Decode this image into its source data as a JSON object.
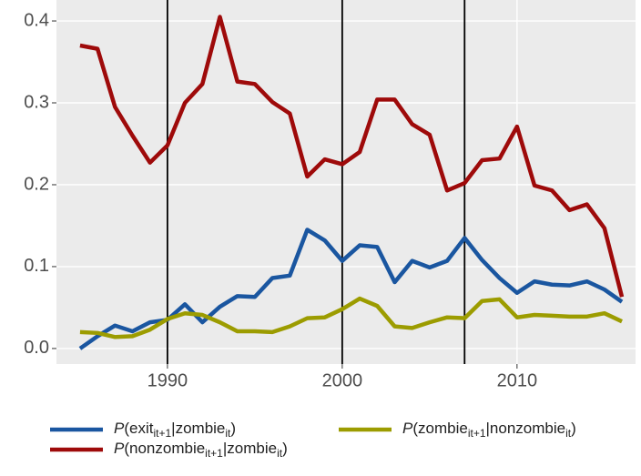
{
  "chart_data": {
    "type": "line",
    "x": [
      1985,
      1986,
      1987,
      1988,
      1989,
      1990,
      1991,
      1992,
      1993,
      1994,
      1995,
      1996,
      1997,
      1998,
      1999,
      2000,
      2001,
      2002,
      2003,
      2004,
      2005,
      2006,
      2007,
      2008,
      2009,
      2010,
      2011,
      2012,
      2013,
      2014,
      2015,
      2016
    ],
    "series": [
      {
        "name": [
          {
            "t": "P",
            "style": "italic"
          },
          {
            "t": "(exit"
          },
          {
            "t": "it+1",
            "style": "sub"
          },
          {
            "t": "|zombie"
          },
          {
            "t": "it",
            "style": "sub"
          },
          {
            "t": ")"
          }
        ],
        "color": "#1a56a0",
        "values": [
          0.0,
          0.015,
          0.028,
          0.021,
          0.032,
          0.035,
          0.054,
          0.032,
          0.051,
          0.064,
          0.063,
          0.086,
          0.089,
          0.145,
          0.132,
          0.107,
          0.126,
          0.124,
          0.081,
          0.107,
          0.099,
          0.107,
          0.135,
          0.108,
          0.086,
          0.068,
          0.082,
          0.078,
          0.077,
          0.082,
          0.072,
          0.057
        ]
      },
      {
        "name": [
          {
            "t": "P",
            "style": "italic"
          },
          {
            "t": "(nonzombie"
          },
          {
            "t": "it+1",
            "style": "sub"
          },
          {
            "t": "|zombie"
          },
          {
            "t": "it",
            "style": "sub"
          },
          {
            "t": ")"
          }
        ],
        "color": "#9e0a0a",
        "values": [
          0.37,
          0.366,
          0.295,
          0.26,
          0.227,
          0.248,
          0.3,
          0.323,
          0.405,
          0.326,
          0.323,
          0.301,
          0.287,
          0.21,
          0.231,
          0.225,
          0.24,
          0.304,
          0.304,
          0.274,
          0.261,
          0.193,
          0.202,
          0.23,
          0.232,
          0.271,
          0.199,
          0.193,
          0.169,
          0.176,
          0.147,
          0.063
        ]
      },
      {
        "name": [
          {
            "t": "P",
            "style": "italic"
          },
          {
            "t": "(zombie"
          },
          {
            "t": "it+1",
            "style": "sub"
          },
          {
            "t": "|nonzombie"
          },
          {
            "t": "it",
            "style": "sub"
          },
          {
            "t": ")"
          }
        ],
        "color": "#9c9c00",
        "values": [
          0.02,
          0.019,
          0.014,
          0.015,
          0.023,
          0.036,
          0.043,
          0.041,
          0.032,
          0.021,
          0.021,
          0.02,
          0.027,
          0.037,
          0.038,
          0.048,
          0.061,
          0.052,
          0.027,
          0.025,
          0.032,
          0.038,
          0.037,
          0.058,
          0.06,
          0.038,
          0.041,
          0.04,
          0.039,
          0.039,
          0.043,
          0.033
        ]
      }
    ],
    "vlines": [
      1990,
      2000,
      2007
    ],
    "xlim": [
      1983.65,
      2016.78
    ],
    "xticks": [
      1990,
      2000,
      2010
    ],
    "ylim": [
      -0.019,
      0.4256
    ],
    "yticks": [
      {
        "value": 0,
        "label": "0.0"
      },
      0.1,
      0.2,
      0.3,
      0.4
    ],
    "grid": true,
    "legend": "bottom"
  }
}
